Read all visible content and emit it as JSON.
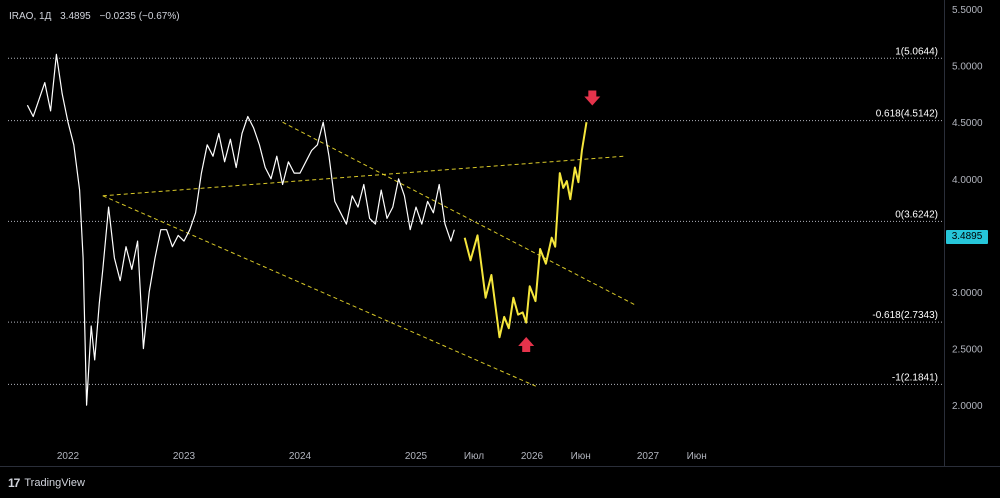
{
  "header": {
    "symbol": "IRAO, 1Д",
    "price": "3.4895",
    "change": "−0.0235 (−0.67%)"
  },
  "price_tag": "3.4895",
  "brand": {
    "logo": "17",
    "name": "TradingView"
  },
  "colors": {
    "background": "#000000",
    "history_line": "#ffffff",
    "forecast_line": "#f5e63c",
    "trend_lines": "#d8c828",
    "levels": "#b2b5be",
    "arrows": "#e5334b",
    "price_tag": "#26c6da"
  },
  "chart_data": {
    "type": "line",
    "x_axis": {
      "ticks": [
        {
          "t": 2022.0,
          "label": "2022"
        },
        {
          "t": 2023.0,
          "label": "2023"
        },
        {
          "t": 2024.0,
          "label": "2024"
        },
        {
          "t": 2025.0,
          "label": "2025"
        },
        {
          "t": 2025.5,
          "label": "Июл"
        },
        {
          "t": 2026.0,
          "label": "2026"
        },
        {
          "t": 2026.42,
          "label": "Июн"
        },
        {
          "t": 2027.0,
          "label": "2027"
        },
        {
          "t": 2027.42,
          "label": "Июн"
        }
      ]
    },
    "y_axis": {
      "ylim": [
        1.85,
        5.55
      ],
      "ticks": [
        "5.5000",
        "5.0000",
        "4.5000",
        "4.0000",
        "3.5000",
        "3.0000",
        "2.5000",
        "2.0000"
      ],
      "tick_values": [
        5.5,
        5.0,
        4.5,
        4.0,
        3.5,
        3.0,
        2.5,
        2.0
      ]
    },
    "fib_levels": [
      {
        "value": 5.0644,
        "label": "1(5.0644)"
      },
      {
        "value": 4.5142,
        "label": "0.618(4.5142)"
      },
      {
        "value": 3.6242,
        "label": "0(3.6242)"
      },
      {
        "value": 2.7343,
        "label": "-0.618(2.7343)"
      },
      {
        "value": 2.1841,
        "label": "-1(2.1841)"
      }
    ],
    "series": [
      {
        "role": "history",
        "x": [
          2021.65,
          2021.7,
          2021.75,
          2021.8,
          2021.85,
          2021.9,
          2021.95,
          2022.0,
          2022.05,
          2022.1,
          2022.13,
          2022.16,
          2022.2,
          2022.23,
          2022.27,
          2022.3,
          2022.35,
          2022.4,
          2022.45,
          2022.5,
          2022.55,
          2022.6,
          2022.65,
          2022.7,
          2022.75,
          2022.8,
          2022.85,
          2022.9,
          2022.95,
          2023.0,
          2023.05,
          2023.1,
          2023.15,
          2023.2,
          2023.25,
          2023.3,
          2023.35,
          2023.4,
          2023.45,
          2023.5,
          2023.55,
          2023.6,
          2023.65,
          2023.7,
          2023.75,
          2023.8,
          2023.85,
          2023.9,
          2023.95,
          2024.0,
          2024.05,
          2024.1,
          2024.15,
          2024.2,
          2024.25,
          2024.3,
          2024.35,
          2024.4,
          2024.45,
          2024.5,
          2024.55,
          2024.6,
          2024.65,
          2024.7,
          2024.75,
          2024.8,
          2024.85,
          2024.9,
          2024.95,
          2025.0,
          2025.05,
          2025.1,
          2025.15,
          2025.2,
          2025.25,
          2025.3,
          2025.33
        ],
        "y": [
          4.65,
          4.55,
          4.7,
          4.85,
          4.6,
          5.1,
          4.75,
          4.5,
          4.3,
          3.9,
          3.3,
          2.0,
          2.7,
          2.4,
          2.9,
          3.2,
          3.75,
          3.3,
          3.1,
          3.4,
          3.2,
          3.45,
          2.5,
          3.0,
          3.3,
          3.55,
          3.55,
          3.4,
          3.5,
          3.45,
          3.55,
          3.7,
          4.05,
          4.3,
          4.2,
          4.4,
          4.15,
          4.35,
          4.1,
          4.4,
          4.55,
          4.45,
          4.3,
          4.1,
          4.0,
          4.2,
          3.95,
          4.15,
          4.05,
          4.05,
          4.15,
          4.25,
          4.3,
          4.5,
          4.2,
          3.8,
          3.7,
          3.6,
          3.85,
          3.75,
          3.95,
          3.65,
          3.6,
          3.9,
          3.65,
          3.75,
          4.0,
          3.85,
          3.55,
          3.75,
          3.6,
          3.8,
          3.7,
          3.95,
          3.6,
          3.45,
          3.55
        ]
      },
      {
        "role": "forecast",
        "x": [
          2025.42,
          2025.47,
          2025.53,
          2025.6,
          2025.65,
          2025.72,
          2025.76,
          2025.8,
          2025.84,
          2025.88,
          2025.92,
          2025.95,
          2025.98,
          2026.03,
          2026.07,
          2026.12,
          2026.17,
          2026.2,
          2026.24,
          2026.27,
          2026.3,
          2026.33,
          2026.37,
          2026.4,
          2026.43,
          2026.47
        ],
        "y": [
          3.48,
          3.28,
          3.5,
          2.95,
          3.15,
          2.6,
          2.78,
          2.68,
          2.95,
          2.8,
          2.82,
          2.73,
          3.05,
          2.92,
          3.38,
          3.25,
          3.48,
          3.4,
          4.05,
          3.92,
          3.98,
          3.82,
          4.1,
          3.97,
          4.25,
          4.5
        ]
      }
    ],
    "trend_lines": [
      {
        "x1": 2022.3,
        "y1": 3.85,
        "x2": 2026.8,
        "y2": 4.2
      },
      {
        "x1": 2022.3,
        "y1": 3.85,
        "x2": 2026.05,
        "y2": 2.16
      },
      {
        "x1": 2023.85,
        "y1": 4.5,
        "x2": 2026.9,
        "y2": 2.88
      }
    ],
    "arrows": [
      {
        "x": 2026.52,
        "y": 4.7,
        "direction": "down"
      },
      {
        "x": 2025.95,
        "y": 2.55,
        "direction": "up"
      }
    ]
  }
}
